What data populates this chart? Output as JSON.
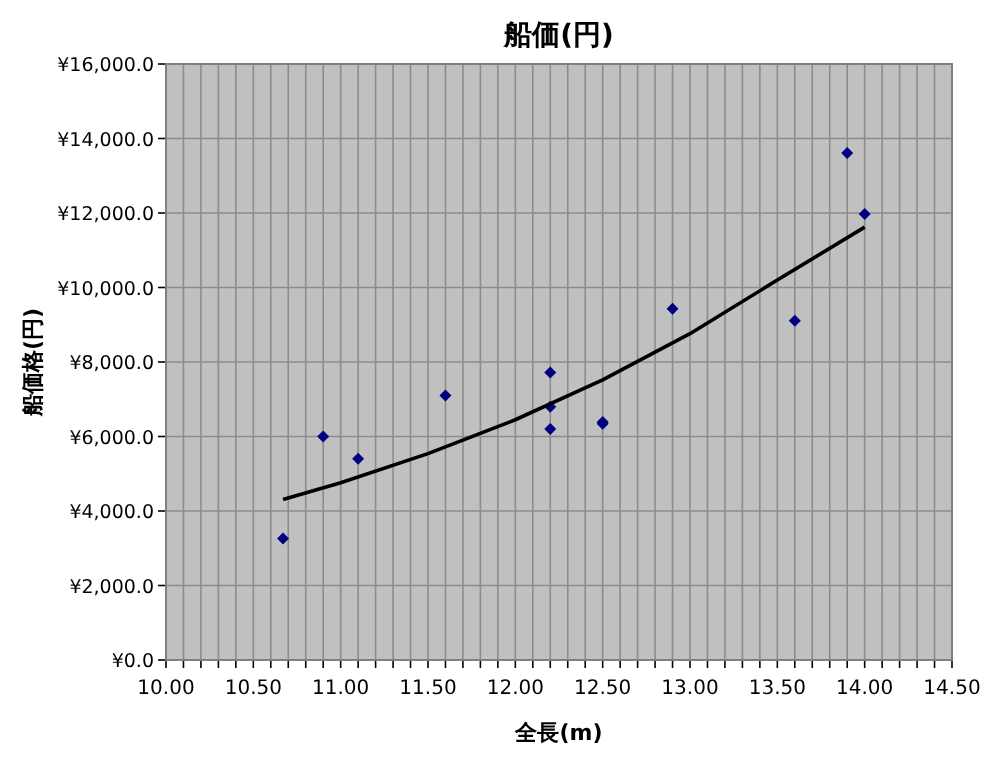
{
  "chart_data": {
    "type": "scatter",
    "title": "船価(円)",
    "xlabel": "全長(m)",
    "ylabel": "船価格(円)",
    "series": [
      {
        "color": "#000080",
        "marker": "diamond",
        "x": [
          10.67,
          10.9,
          11.1,
          11.6,
          12.2,
          12.2,
          12.2,
          12.5,
          12.5,
          12.9,
          13.6,
          13.9,
          14.0
        ],
        "values": [
          3260,
          6000,
          5400,
          7100,
          7720,
          6800,
          6200,
          6390,
          6340,
          9430,
          9110,
          13610,
          11970
        ]
      },
      {
        "type": "line",
        "color": "#000000",
        "line_style": "solid",
        "x": [
          10.67,
          11.0,
          11.5,
          12.0,
          12.5,
          13.0,
          13.5,
          14.0
        ],
        "values": [
          4310,
          4760,
          5540,
          6450,
          7520,
          8760,
          10200,
          11620
        ]
      }
    ],
    "xlim": [
      10,
      14.5
    ],
    "xticks": [
      {
        "value": 10,
        "label": "10.00"
      },
      {
        "value": 10.1,
        "label": null
      },
      {
        "value": 10.2,
        "label": null
      },
      {
        "value": 10.3,
        "label": null
      },
      {
        "value": 10.4,
        "label": null
      },
      {
        "value": 10.5,
        "label": "10.50"
      },
      {
        "value": 10.6,
        "label": null
      },
      {
        "value": 10.7,
        "label": null
      },
      {
        "value": 10.8,
        "label": null
      },
      {
        "value": 10.9,
        "label": null
      },
      {
        "value": 11,
        "label": "11.00"
      },
      {
        "value": 11.1,
        "label": null
      },
      {
        "value": 11.2,
        "label": null
      },
      {
        "value": 11.3,
        "label": null
      },
      {
        "value": 11.4,
        "label": null
      },
      {
        "value": 11.5,
        "label": "11.50"
      },
      {
        "value": 11.6,
        "label": null
      },
      {
        "value": 11.7,
        "label": null
      },
      {
        "value": 11.8,
        "label": null
      },
      {
        "value": 11.9,
        "label": null
      },
      {
        "value": 12,
        "label": "12.00"
      },
      {
        "value": 12.1,
        "label": null
      },
      {
        "value": 12.2,
        "label": null
      },
      {
        "value": 12.3,
        "label": null
      },
      {
        "value": 12.4,
        "label": null
      },
      {
        "value": 12.5,
        "label": "12.50"
      },
      {
        "value": 12.6,
        "label": null
      },
      {
        "value": 12.7,
        "label": null
      },
      {
        "value": 12.8,
        "label": null
      },
      {
        "value": 12.9,
        "label": null
      },
      {
        "value": 13,
        "label": "13.00"
      },
      {
        "value": 13.1,
        "label": null
      },
      {
        "value": 13.2,
        "label": null
      },
      {
        "value": 13.3,
        "label": null
      },
      {
        "value": 13.4,
        "label": null
      },
      {
        "value": 13.5,
        "label": "13.50"
      },
      {
        "value": 13.6,
        "label": null
      },
      {
        "value": 13.7,
        "label": null
      },
      {
        "value": 13.8,
        "label": null
      },
      {
        "value": 13.9,
        "label": null
      },
      {
        "value": 14,
        "label": "14.00"
      },
      {
        "value": 14.1,
        "label": null
      },
      {
        "value": 14.2,
        "label": null
      },
      {
        "value": 14.3,
        "label": null
      },
      {
        "value": 14.4,
        "label": null
      },
      {
        "value": 14.5,
        "label": "14.50"
      }
    ],
    "ylim": [
      0,
      16000
    ],
    "yticks": [
      {
        "value": 0,
        "label": "¥0.0"
      },
      {
        "value": 2000,
        "label": "¥2,000.0"
      },
      {
        "value": 4000,
        "label": "¥4,000.0"
      },
      {
        "value": 6000,
        "label": "¥6,000.0"
      },
      {
        "value": 8000,
        "label": "¥8,000.0"
      },
      {
        "value": 10000,
        "label": "¥10,000.0"
      },
      {
        "value": 12000,
        "label": "¥12,000.0"
      },
      {
        "value": 14000,
        "label": "¥14,000.0"
      },
      {
        "value": 16000,
        "label": "¥16,000.0"
      }
    ],
    "grid": true
  }
}
